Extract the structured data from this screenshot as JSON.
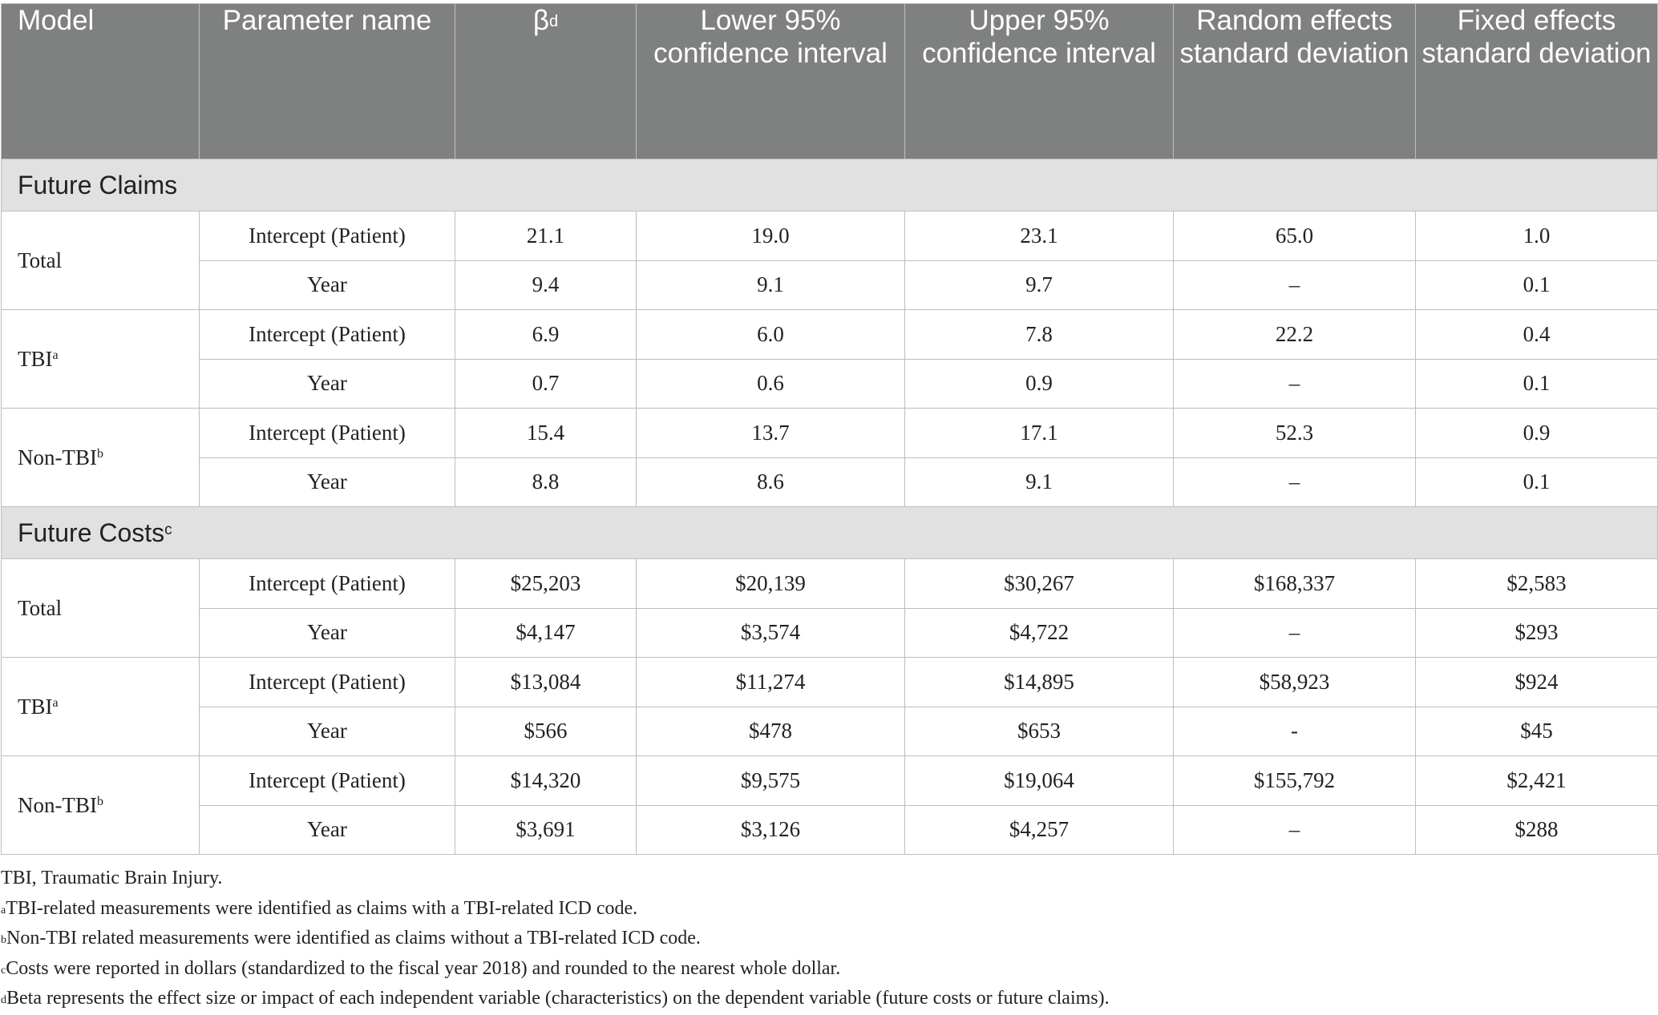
{
  "header": {
    "model": "Model",
    "parameter": "Parameter name",
    "beta": "β",
    "beta_sup": "d",
    "lower": "Lower 95% confidence interval",
    "upper": "Upper 95% confidence interval",
    "random_sd": "Random effects standard deviation",
    "fixed_sd": "Fixed effects standard deviation"
  },
  "sections": [
    {
      "title": "Future Claims",
      "title_sup": "",
      "groups": [
        {
          "model": "Total",
          "sup": "",
          "rows": [
            {
              "parameter": "Intercept (Patient)",
              "beta": "21.1",
              "lower": "19.0",
              "upper": "23.1",
              "random_sd": "65.0",
              "fixed_sd": "1.0"
            },
            {
              "parameter": "Year",
              "beta": "9.4",
              "lower": "9.1",
              "upper": "9.7",
              "random_sd": "–",
              "fixed_sd": "0.1"
            }
          ]
        },
        {
          "model": "TBI",
          "sup": "a",
          "rows": [
            {
              "parameter": "Intercept (Patient)",
              "beta": "6.9",
              "lower": "6.0",
              "upper": "7.8",
              "random_sd": "22.2",
              "fixed_sd": "0.4"
            },
            {
              "parameter": "Year",
              "beta": "0.7",
              "lower": "0.6",
              "upper": "0.9",
              "random_sd": "–",
              "fixed_sd": "0.1"
            }
          ]
        },
        {
          "model": "Non-TBI",
          "sup": "b",
          "rows": [
            {
              "parameter": "Intercept (Patient)",
              "beta": "15.4",
              "lower": "13.7",
              "upper": "17.1",
              "random_sd": "52.3",
              "fixed_sd": "0.9"
            },
            {
              "parameter": "Year",
              "beta": "8.8",
              "lower": "8.6",
              "upper": "9.1",
              "random_sd": "–",
              "fixed_sd": "0.1"
            }
          ]
        }
      ]
    },
    {
      "title": "Future Costs",
      "title_sup": "c",
      "groups": [
        {
          "model": "Total",
          "sup": "",
          "rows": [
            {
              "parameter": "Intercept (Patient)",
              "beta": "$25,203",
              "lower": "$20,139",
              "upper": "$30,267",
              "random_sd": "$168,337",
              "fixed_sd": "$2,583"
            },
            {
              "parameter": "Year",
              "beta": "$4,147",
              "lower": "$3,574",
              "upper": "$4,722",
              "random_sd": "–",
              "fixed_sd": "$293"
            }
          ]
        },
        {
          "model": "TBI",
          "sup": "a",
          "rows": [
            {
              "parameter": "Intercept (Patient)",
              "beta": "$13,084",
              "lower": "$11,274",
              "upper": "$14,895",
              "random_sd": "$58,923",
              "fixed_sd": "$924"
            },
            {
              "parameter": "Year",
              "beta": "$566",
              "lower": "$478",
              "upper": "$653",
              "random_sd": "-",
              "fixed_sd": "$45"
            }
          ]
        },
        {
          "model": "Non-TBI",
          "sup": "b",
          "rows": [
            {
              "parameter": "Intercept (Patient)",
              "beta": "$14,320",
              "lower": "$9,575",
              "upper": "$19,064",
              "random_sd": "$155,792",
              "fixed_sd": "$2,421"
            },
            {
              "parameter": "Year",
              "beta": "$3,691",
              "lower": "$3,126",
              "upper": "$4,257",
              "random_sd": "–",
              "fixed_sd": "$288"
            }
          ]
        }
      ]
    }
  ],
  "footnotes": [
    {
      "sup": "",
      "text": "TBI, Traumatic Brain Injury."
    },
    {
      "sup": "a",
      "text": "TBI-related measurements were identified as claims with a TBI-related ICD code."
    },
    {
      "sup": "b",
      "text": "Non-TBI related measurements were identified as claims without a TBI-related ICD code."
    },
    {
      "sup": "c",
      "text": "Costs were reported in dollars (standardized to the fiscal year 2018) and rounded to the nearest whole dollar."
    },
    {
      "sup": "d",
      "text": "Beta represents the effect size or impact of each independent variable (characteristics) on the dependent variable (future costs or future claims)."
    }
  ]
}
